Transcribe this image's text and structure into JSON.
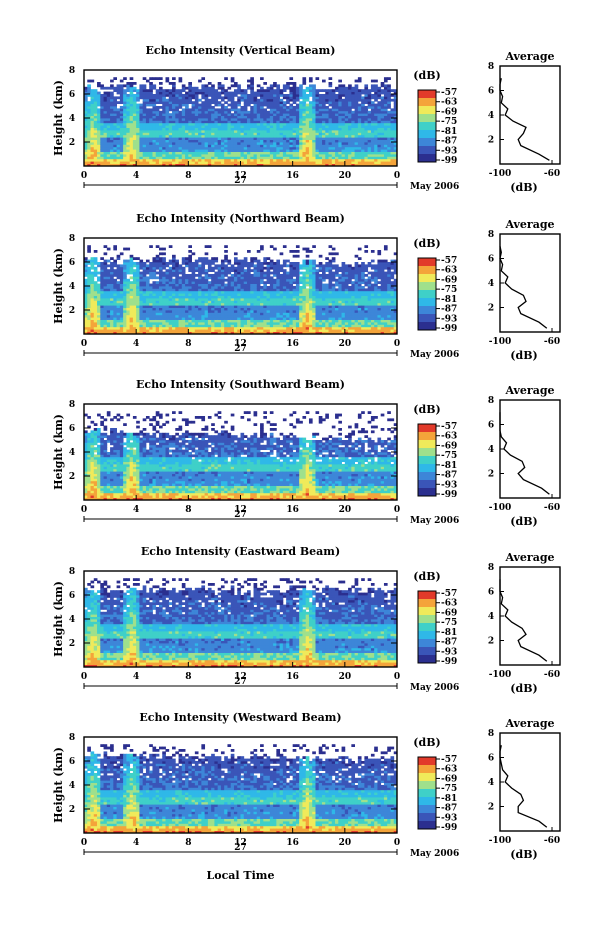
{
  "figure": {
    "date_label": "May 2006",
    "day_label": "27",
    "xlabel": "Local Time",
    "ylabel": "Height (km)",
    "colorbar_unit": "(dB)",
    "avg_title": "Average",
    "avg_xlabel": "(dB)",
    "avg_xticks": [
      "-100",
      "-60"
    ],
    "x_ticks": [
      "0",
      "4",
      "8",
      "12",
      "16",
      "20",
      "0"
    ],
    "y_ticks": [
      "8",
      "6",
      "4",
      "2"
    ],
    "colorbar_ticks": [
      "-57",
      "-63",
      "-69",
      "-75",
      "-81",
      "-87",
      "-93",
      "-99"
    ]
  },
  "colors": {
    "colormap": [
      "#2b2f8f",
      "#3a55b8",
      "#3d86d8",
      "#2fb8e8",
      "#3fd0c8",
      "#9fe08c",
      "#f0ea5a",
      "#f4a43a",
      "#e23a2a"
    ]
  },
  "chart_data": [
    {
      "type": "heatmap",
      "title": "Echo Intensity (Vertical Beam)",
      "x_range": [
        0,
        24
      ],
      "y_range": [
        0,
        8
      ],
      "colorbar_range": [
        -99,
        -57
      ],
      "echo_top_km": [
        6.6,
        6.6
      ],
      "convective_events_hour": [
        0.7,
        3.7,
        17.1
      ],
      "average_profile": {
        "height_km": [
          0.3,
          0.8,
          1.5,
          2.0,
          2.5,
          3.0,
          3.5,
          4.0,
          4.5,
          5.0,
          5.5,
          6.0,
          6.5,
          7.0
        ],
        "echo_db": [
          -62,
          -70,
          -84,
          -86,
          -82,
          -80,
          -90,
          -96,
          -94,
          -99,
          -98,
          -100,
          -100,
          -99
        ]
      }
    },
    {
      "type": "heatmap",
      "title": "Echo Intensity (Northward Beam)",
      "x_range": [
        0,
        24
      ],
      "y_range": [
        0,
        8
      ],
      "colorbar_range": [
        -99,
        -57
      ],
      "echo_top_km": [
        6.3,
        6.0
      ],
      "convective_events_hour": [
        0.7,
        3.7,
        17.1
      ],
      "average_profile": {
        "height_km": [
          0.3,
          0.8,
          1.5,
          2.0,
          2.5,
          3.0,
          3.5,
          4.0,
          4.5,
          5.0,
          5.5,
          6.0,
          6.5,
          7.0
        ],
        "echo_db": [
          -64,
          -70,
          -84,
          -86,
          -80,
          -82,
          -91,
          -96,
          -94,
          -99,
          -98,
          -100,
          -99,
          -100
        ]
      }
    },
    {
      "type": "heatmap",
      "title": "Echo Intensity (Southward Beam)",
      "x_range": [
        0,
        24
      ],
      "y_range": [
        0,
        8
      ],
      "colorbar_range": [
        -99,
        -57
      ],
      "echo_top_km": [
        5.8,
        5.0
      ],
      "convective_events_hour": [
        0.7,
        3.7,
        17.1
      ],
      "average_profile": {
        "height_km": [
          0.3,
          0.8,
          1.5,
          2.0,
          2.5,
          3.0,
          3.5,
          4.0,
          4.5,
          5.0,
          5.5,
          6.0,
          6.5,
          7.0
        ],
        "echo_db": [
          -62,
          -68,
          -82,
          -86,
          -81,
          -83,
          -92,
          -97,
          -95,
          -99,
          -100,
          -100,
          -100,
          -100
        ]
      }
    },
    {
      "type": "heatmap",
      "title": "Echo Intensity (Eastward Beam)",
      "x_range": [
        0,
        24
      ],
      "y_range": [
        0,
        8
      ],
      "colorbar_range": [
        -99,
        -57
      ],
      "echo_top_km": [
        6.5,
        6.4
      ],
      "convective_events_hour": [
        0.7,
        3.7,
        17.1
      ],
      "average_profile": {
        "height_km": [
          0.3,
          0.8,
          1.5,
          2.0,
          2.5,
          3.0,
          3.5,
          4.0,
          4.5,
          5.0,
          5.5,
          6.0,
          6.5,
          7.0
        ],
        "echo_db": [
          -64,
          -70,
          -84,
          -86,
          -80,
          -83,
          -91,
          -96,
          -94,
          -99,
          -98,
          -100,
          -100,
          -100
        ]
      }
    },
    {
      "type": "heatmap",
      "title": "Echo Intensity (Westward Beam)",
      "x_range": [
        0,
        24
      ],
      "y_range": [
        0,
        8
      ],
      "colorbar_range": [
        -99,
        -57
      ],
      "echo_top_km": [
        6.6,
        6.1
      ],
      "convective_events_hour": [
        0.7,
        3.7,
        17.1
      ],
      "average_profile": {
        "height_km": [
          0.3,
          0.8,
          1.5,
          2.0,
          2.5,
          3.0,
          3.5,
          4.0,
          4.5,
          5.0,
          5.5,
          6.0,
          6.5,
          7.0
        ],
        "echo_db": [
          -64,
          -70,
          -86,
          -86,
          -82,
          -84,
          -91,
          -96,
          -94,
          -98,
          -99,
          -100,
          -100,
          -99
        ]
      }
    }
  ]
}
